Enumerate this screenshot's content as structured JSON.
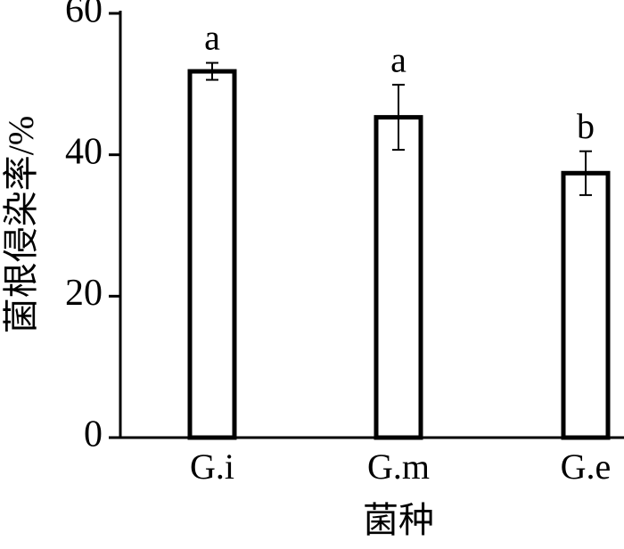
{
  "chart_data": {
    "type": "bar",
    "x_label": "菌种",
    "y_label": "菌根侵染率/%",
    "categories": [
      "G.i",
      "G.m",
      "G.e"
    ],
    "values": [
      51.8,
      45.3,
      37.4
    ],
    "errors": [
      1.2,
      4.6,
      3.1
    ],
    "annotations": [
      "a",
      "a",
      "b"
    ],
    "color": "#ffffff",
    "ylim": [
      0,
      60
    ],
    "yticks": [
      0,
      20,
      40,
      60
    ],
    "grid": false
  }
}
